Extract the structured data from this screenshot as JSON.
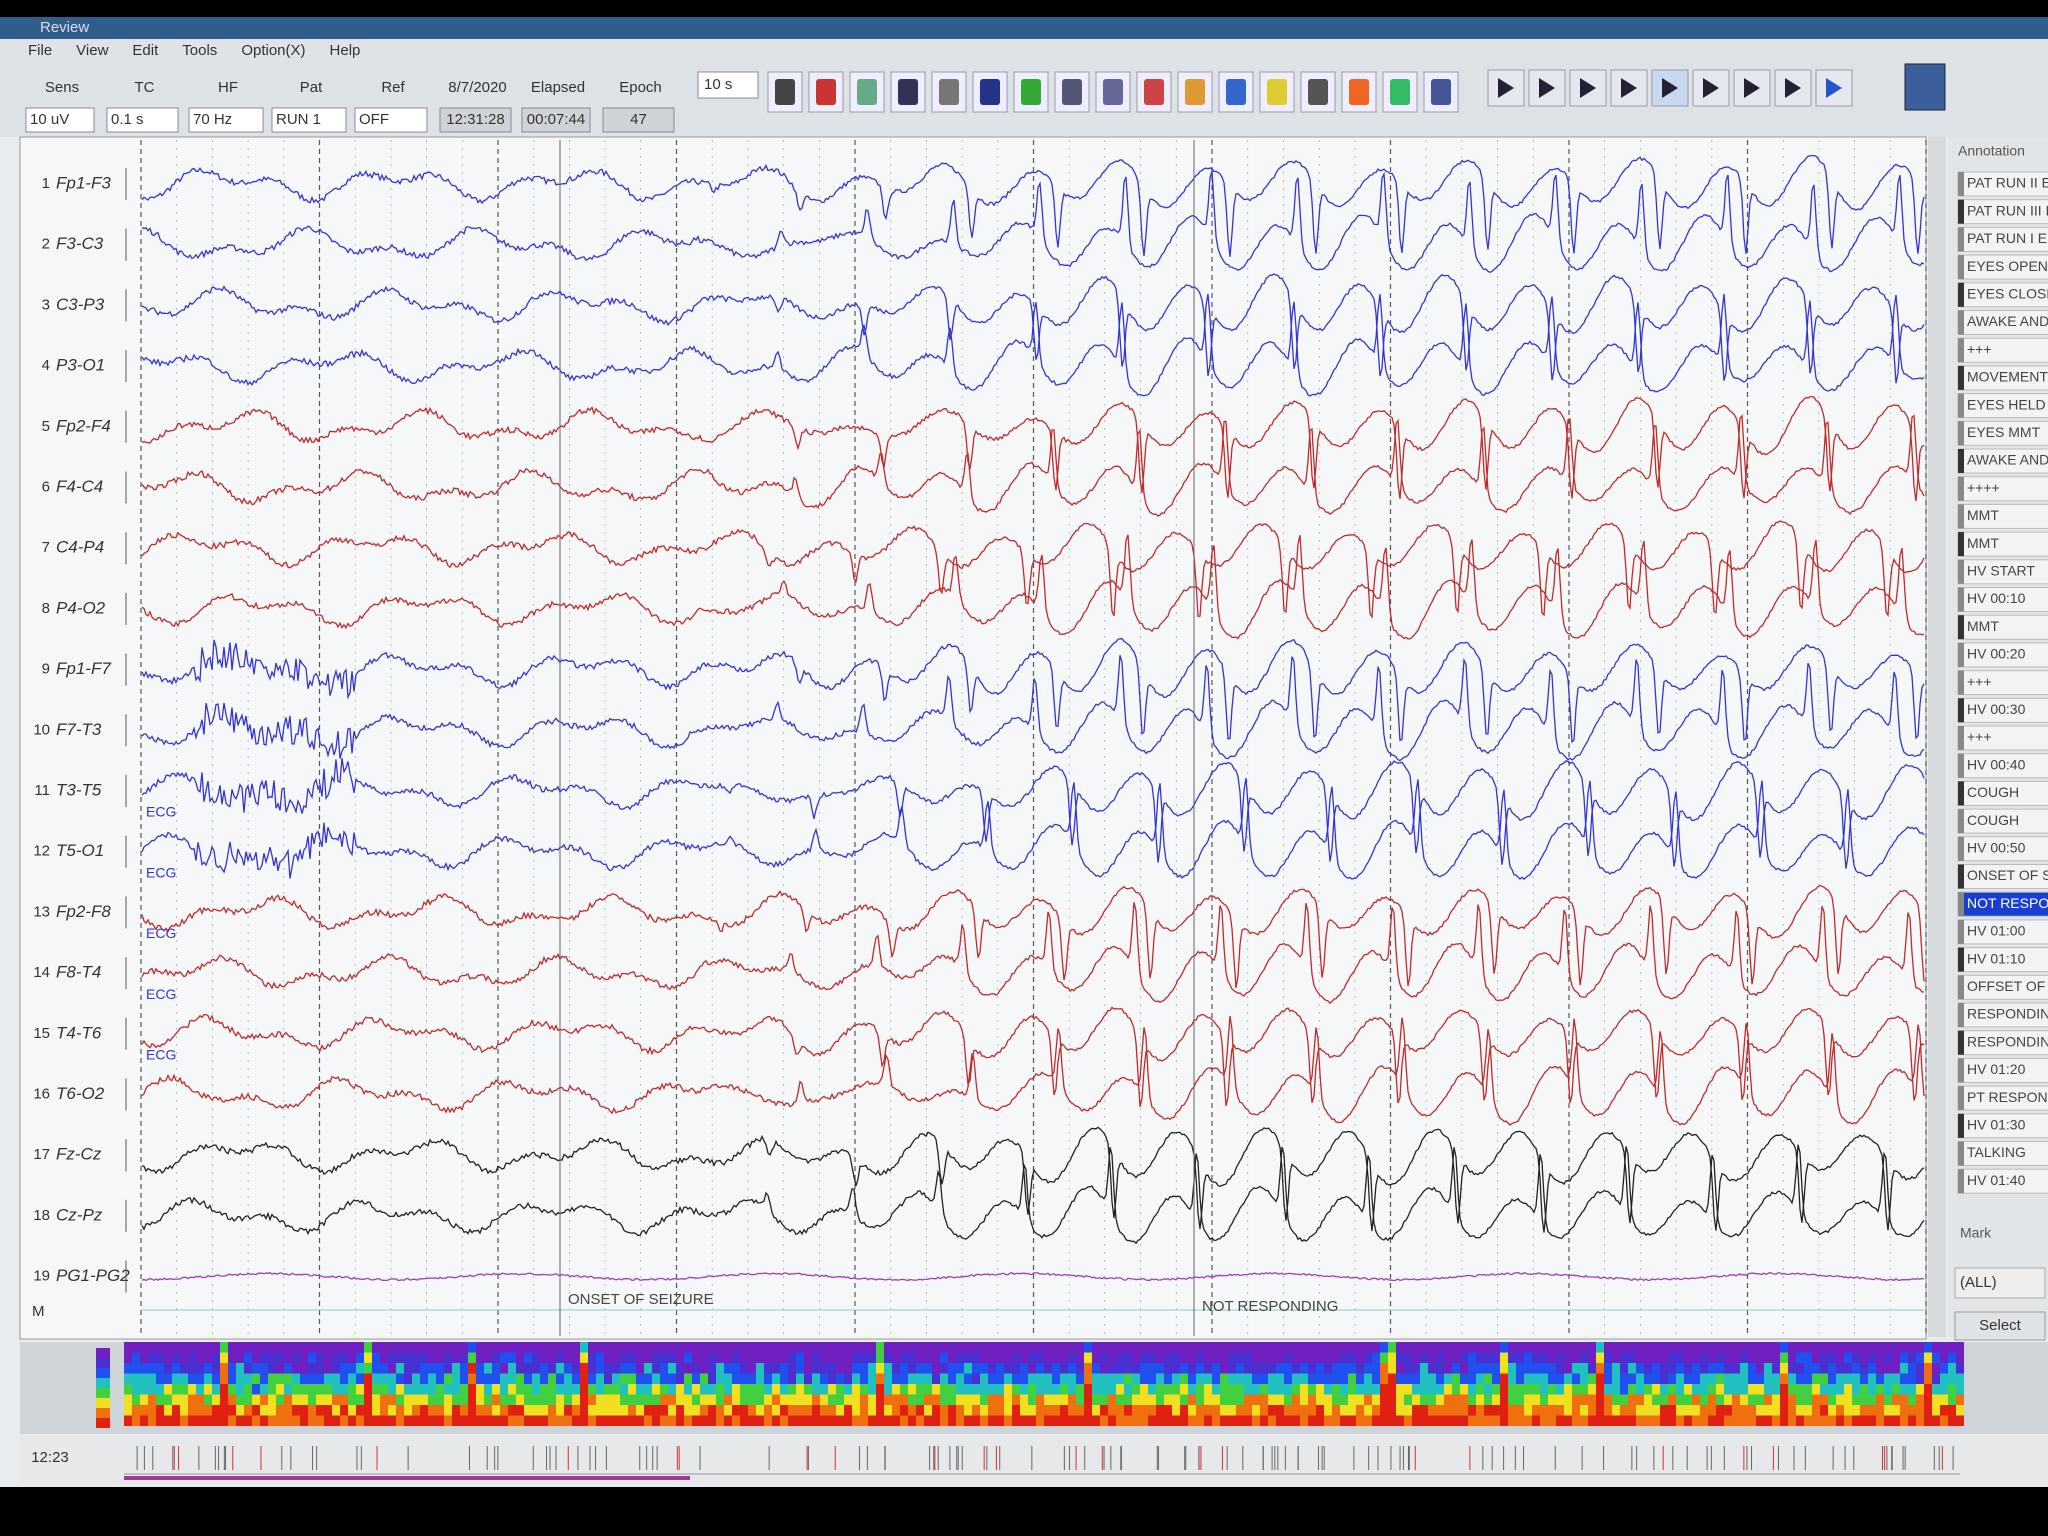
{
  "window": {
    "title": "Review"
  },
  "menu": [
    "File",
    "View",
    "Edit",
    "Tools",
    "Option(X)",
    "Help"
  ],
  "toolbar": {
    "fields": [
      {
        "label": "Sens",
        "value": "10 uV"
      },
      {
        "label": "TC",
        "value": "0.1 s"
      },
      {
        "label": "HF",
        "value": "70 Hz"
      },
      {
        "label": "Pat",
        "value": "RUN 1"
      },
      {
        "label": "Ref",
        "value": "OFF"
      },
      {
        "label": "8/7/2020",
        "value": "12:31:28"
      },
      {
        "label": "Elapsed",
        "value": "00:07:44"
      },
      {
        "label": "Epoch",
        "value": "47"
      }
    ],
    "page": "10 s"
  },
  "channels": [
    {
      "number": 1,
      "name": "Fp1-F3"
    },
    {
      "number": 2,
      "name": "F3-C3"
    },
    {
      "number": 3,
      "name": "C3-P3"
    },
    {
      "number": 4,
      "name": "P3-O1"
    },
    {
      "number": 5,
      "name": "Fp2-F4"
    },
    {
      "number": 6,
      "name": "F4-C4"
    },
    {
      "number": 7,
      "name": "C4-P4"
    },
    {
      "number": 8,
      "name": "P4-O2"
    },
    {
      "number": 9,
      "name": "Fp1-F7"
    },
    {
      "number": 10,
      "name": "F7-T3"
    },
    {
      "number": 11,
      "name": "T3-T5"
    },
    {
      "number": 12,
      "name": "T5-O1"
    },
    {
      "number": 13,
      "name": "Fp2-F8"
    },
    {
      "number": 14,
      "name": "F8-T4"
    },
    {
      "number": 15,
      "name": "T4-T6"
    },
    {
      "number": 16,
      "name": "T6-O2"
    },
    {
      "number": 17,
      "name": "Fz-Cz"
    },
    {
      "number": 18,
      "name": "Cz-Pz"
    },
    {
      "number": 19,
      "name": "PG1-PG2"
    }
  ],
  "marker_row": "M",
  "trace_annotations": {
    "ecg": [
      "ECG",
      "ECG",
      "ECG",
      "ECG",
      "ECG"
    ],
    "events": [
      "ONSET OF SEIZURE",
      "NOT RESPONDING"
    ]
  },
  "annotation_panel": {
    "title": "Annotation",
    "items": [
      "PAT RUN II E",
      "PAT RUN III E",
      "PAT RUN I EE",
      "EYES OPEN",
      "EYES CLOSE",
      "AWAKE AND",
      "+++",
      "MOVEMENT",
      "EYES HELD",
      "EYES MMT",
      "AWAKE AND",
      "++++",
      "MMT",
      "MMT",
      "HV START",
      "HV 00:10",
      "MMT",
      "HV 00:20",
      "+++",
      "HV 00:30",
      "+++",
      "HV 00:40",
      "COUGH",
      "COUGH",
      "HV 00:50",
      "ONSET OF SE",
      "NOT RESPON",
      "HV 01:00",
      "HV 01:10",
      "OFFSET OF",
      "RESPONDIN",
      "RESPONDIN",
      "HV 01:20",
      "PT RESPOND",
      "HV 01:30",
      "TALKING",
      "HV 01:40"
    ],
    "selected": 26,
    "mark_label": "Mark",
    "filter": "(ALL)",
    "button": "Select"
  },
  "timeline": {
    "time": "12:23"
  }
}
